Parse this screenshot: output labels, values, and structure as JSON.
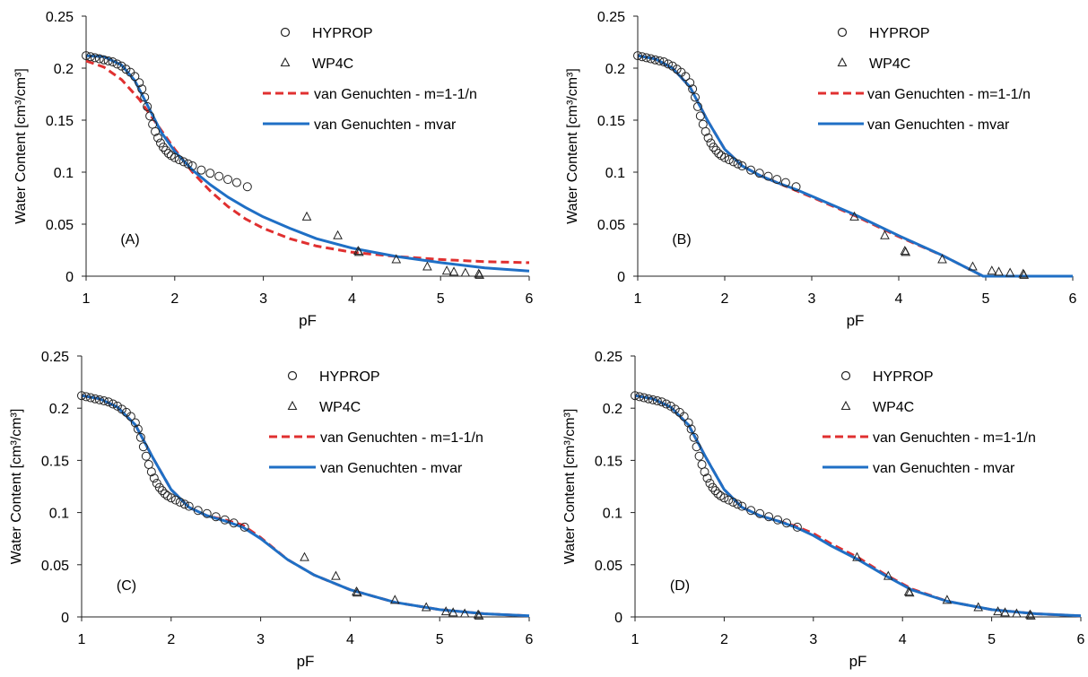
{
  "figure": {
    "x_axis": {
      "label": "pF",
      "lim": [
        1,
        6
      ],
      "ticks": [
        1,
        2,
        3,
        4,
        5,
        6
      ]
    },
    "y_axis": {
      "label": "Water Content [cm³/cm³]",
      "lim": [
        0,
        0.25
      ],
      "ticks": [
        0,
        0.05,
        0.1,
        0.15,
        0.2,
        0.25
      ],
      "tick_labels": [
        "0",
        "0.05",
        "0.1",
        "0.15",
        "0.2",
        "0.25"
      ]
    },
    "legend": {
      "placement": "top-right",
      "entries": [
        {
          "label": "HYPROP",
          "marker": "circle",
          "color": "#222222"
        },
        {
          "label": "WP4C",
          "marker": "triangle",
          "color": "#222222"
        },
        {
          "label": "van Genuchten - m=1-1/n",
          "line": "dashed",
          "color": "#e03030"
        },
        {
          "label": "van Genuchten - mvar",
          "line": "solid",
          "color": "#1f6fc5"
        }
      ]
    }
  },
  "chart_data": [
    {
      "type": "scatter",
      "panel_label": "(A)",
      "xlabel": "pF",
      "ylabel": "Water Content [cm³/cm³]",
      "xlim": [
        1,
        6
      ],
      "ylim": [
        0,
        0.25
      ],
      "grid": false,
      "series": [
        {
          "name": "HYPROP",
          "marker": "circle",
          "color": "#222222",
          "x": [
            1.0,
            1.05,
            1.1,
            1.15,
            1.2,
            1.25,
            1.3,
            1.35,
            1.4,
            1.45,
            1.5,
            1.55,
            1.6,
            1.63,
            1.66,
            1.69,
            1.72,
            1.75,
            1.78,
            1.81,
            1.84,
            1.87,
            1.9,
            1.93,
            1.96,
            2.0,
            2.05,
            2.1,
            2.15,
            2.2,
            2.3,
            2.4,
            2.5,
            2.6,
            2.7,
            2.82
          ],
          "y": [
            0.212,
            0.211,
            0.21,
            0.209,
            0.208,
            0.207,
            0.206,
            0.204,
            0.202,
            0.199,
            0.196,
            0.192,
            0.186,
            0.18,
            0.172,
            0.163,
            0.154,
            0.146,
            0.139,
            0.133,
            0.128,
            0.124,
            0.121,
            0.118,
            0.116,
            0.114,
            0.112,
            0.11,
            0.108,
            0.106,
            0.102,
            0.099,
            0.096,
            0.093,
            0.09,
            0.086
          ]
        },
        {
          "name": "WP4C",
          "marker": "triangle",
          "color": "#222222",
          "x": [
            3.49,
            3.84,
            4.07,
            4.08,
            4.5,
            4.85,
            5.07,
            5.15,
            5.28,
            5.43,
            5.44
          ],
          "y": [
            0.057,
            0.039,
            0.024,
            0.023,
            0.016,
            0.009,
            0.005,
            0.004,
            0.003,
            0.002,
            0.001
          ]
        },
        {
          "name": "van Genuchten - m=1-1/n",
          "line": "dashed",
          "color": "#e03030",
          "x": [
            1.0,
            1.2,
            1.4,
            1.6,
            1.8,
            2.0,
            2.2,
            2.4,
            2.6,
            2.8,
            3.0,
            3.3,
            3.6,
            4.0,
            4.5,
            5.0,
            5.5,
            6.0
          ],
          "y": [
            0.207,
            0.201,
            0.189,
            0.17,
            0.146,
            0.122,
            0.1,
            0.082,
            0.067,
            0.055,
            0.046,
            0.036,
            0.029,
            0.023,
            0.019,
            0.016,
            0.014,
            0.013
          ]
        },
        {
          "name": "van Genuchten - mvar",
          "line": "solid",
          "color": "#1f6fc5",
          "x": [
            1.0,
            1.2,
            1.4,
            1.55,
            1.7,
            1.85,
            2.0,
            2.2,
            2.4,
            2.6,
            2.8,
            3.0,
            3.3,
            3.6,
            4.0,
            4.5,
            5.0,
            5.5,
            6.0
          ],
          "y": [
            0.212,
            0.211,
            0.203,
            0.188,
            0.163,
            0.138,
            0.12,
            0.102,
            0.088,
            0.076,
            0.066,
            0.057,
            0.046,
            0.036,
            0.027,
            0.019,
            0.013,
            0.008,
            0.005
          ]
        }
      ]
    },
    {
      "type": "scatter",
      "panel_label": "(B)",
      "xlabel": "pF",
      "ylabel": "Water Content [cm³/cm³]",
      "xlim": [
        1,
        6
      ],
      "ylim": [
        0,
        0.25
      ],
      "grid": false,
      "series": [
        {
          "name": "HYPROP",
          "marker": "circle",
          "color": "#222222",
          "x": [
            1.0,
            1.05,
            1.1,
            1.15,
            1.2,
            1.25,
            1.3,
            1.35,
            1.4,
            1.45,
            1.5,
            1.55,
            1.6,
            1.63,
            1.66,
            1.69,
            1.72,
            1.75,
            1.78,
            1.81,
            1.84,
            1.87,
            1.9,
            1.93,
            1.96,
            2.0,
            2.05,
            2.1,
            2.15,
            2.2,
            2.3,
            2.4,
            2.5,
            2.6,
            2.7,
            2.82
          ],
          "y": [
            0.212,
            0.211,
            0.21,
            0.209,
            0.208,
            0.207,
            0.206,
            0.204,
            0.202,
            0.199,
            0.196,
            0.192,
            0.186,
            0.18,
            0.172,
            0.163,
            0.154,
            0.146,
            0.139,
            0.133,
            0.128,
            0.124,
            0.121,
            0.118,
            0.116,
            0.114,
            0.112,
            0.11,
            0.108,
            0.106,
            0.102,
            0.099,
            0.096,
            0.093,
            0.09,
            0.086
          ]
        },
        {
          "name": "WP4C",
          "marker": "triangle",
          "color": "#222222",
          "x": [
            3.49,
            3.84,
            4.07,
            4.08,
            4.5,
            4.85,
            5.07,
            5.15,
            5.28,
            5.43,
            5.44
          ],
          "y": [
            0.057,
            0.039,
            0.024,
            0.023,
            0.016,
            0.009,
            0.005,
            0.004,
            0.003,
            0.002,
            0.001
          ]
        },
        {
          "name": "van Genuchten - m=1-1/n",
          "line": "dashed",
          "color": "#e03030",
          "x": [
            1.0,
            1.2,
            1.4,
            1.6,
            1.8,
            2.0,
            2.2,
            2.4,
            2.6,
            2.8,
            3.0,
            3.5,
            4.0,
            4.5,
            4.97,
            5.2,
            6.0
          ],
          "y": [
            0.212,
            0.209,
            0.2,
            0.182,
            0.15,
            0.122,
            0.106,
            0.097,
            0.09,
            0.083,
            0.076,
            0.058,
            0.038,
            0.02,
            0.0,
            0.0,
            0.0
          ]
        },
        {
          "name": "van Genuchten - mvar",
          "line": "solid",
          "color": "#1f6fc5",
          "x": [
            1.0,
            1.2,
            1.4,
            1.6,
            1.8,
            2.0,
            2.2,
            2.4,
            2.6,
            2.8,
            3.0,
            3.5,
            4.0,
            4.5,
            4.97,
            5.2,
            6.0
          ],
          "y": [
            0.212,
            0.209,
            0.2,
            0.182,
            0.15,
            0.122,
            0.106,
            0.097,
            0.09,
            0.084,
            0.077,
            0.059,
            0.039,
            0.02,
            0.0,
            0.0,
            0.0
          ]
        }
      ]
    },
    {
      "type": "scatter",
      "panel_label": "(C)",
      "xlabel": "pF",
      "ylabel": "Water Content [cm³/cm³]",
      "xlim": [
        1,
        6
      ],
      "ylim": [
        0,
        0.25
      ],
      "grid": false,
      "series": [
        {
          "name": "HYPROP",
          "marker": "circle",
          "color": "#222222",
          "x": [
            1.0,
            1.05,
            1.1,
            1.15,
            1.2,
            1.25,
            1.3,
            1.35,
            1.4,
            1.45,
            1.5,
            1.55,
            1.6,
            1.63,
            1.66,
            1.69,
            1.72,
            1.75,
            1.78,
            1.81,
            1.84,
            1.87,
            1.9,
            1.93,
            1.96,
            2.0,
            2.05,
            2.1,
            2.15,
            2.2,
            2.3,
            2.4,
            2.5,
            2.6,
            2.7,
            2.82
          ],
          "y": [
            0.212,
            0.211,
            0.21,
            0.209,
            0.208,
            0.207,
            0.206,
            0.204,
            0.202,
            0.199,
            0.196,
            0.192,
            0.186,
            0.18,
            0.172,
            0.163,
            0.154,
            0.146,
            0.139,
            0.133,
            0.128,
            0.124,
            0.121,
            0.118,
            0.116,
            0.114,
            0.112,
            0.11,
            0.108,
            0.106,
            0.102,
            0.099,
            0.096,
            0.093,
            0.09,
            0.086
          ]
        },
        {
          "name": "WP4C",
          "marker": "triangle",
          "color": "#222222",
          "x": [
            3.49,
            3.84,
            4.07,
            4.08,
            4.5,
            4.85,
            5.07,
            5.15,
            5.28,
            5.43,
            5.44
          ],
          "y": [
            0.057,
            0.039,
            0.024,
            0.023,
            0.016,
            0.009,
            0.005,
            0.004,
            0.003,
            0.002,
            0.001
          ]
        },
        {
          "name": "van Genuchten - m=1-1/n",
          "line": "dashed",
          "color": "#e03030",
          "x": [
            1.0,
            1.2,
            1.4,
            1.6,
            1.8,
            2.0,
            2.2,
            2.4,
            2.6,
            2.8,
            3.0,
            3.3,
            3.6,
            4.0,
            4.5,
            5.0,
            5.5,
            6.0
          ],
          "y": [
            0.212,
            0.209,
            0.201,
            0.184,
            0.152,
            0.122,
            0.105,
            0.097,
            0.093,
            0.088,
            0.076,
            0.055,
            0.04,
            0.026,
            0.014,
            0.007,
            0.003,
            0.001
          ]
        },
        {
          "name": "van Genuchten - mvar",
          "line": "solid",
          "color": "#1f6fc5",
          "x": [
            1.0,
            1.2,
            1.4,
            1.6,
            1.8,
            2.0,
            2.2,
            2.4,
            2.6,
            2.8,
            3.0,
            3.3,
            3.6,
            4.0,
            4.5,
            5.0,
            5.5,
            6.0
          ],
          "y": [
            0.212,
            0.209,
            0.201,
            0.184,
            0.152,
            0.122,
            0.105,
            0.097,
            0.092,
            0.086,
            0.075,
            0.055,
            0.04,
            0.026,
            0.014,
            0.007,
            0.003,
            0.001
          ]
        }
      ]
    },
    {
      "type": "scatter",
      "panel_label": "(D)",
      "xlabel": "pF",
      "ylabel": "Water Content [cm³/cm³]",
      "xlim": [
        1,
        6
      ],
      "ylim": [
        0,
        0.25
      ],
      "grid": false,
      "series": [
        {
          "name": "HYPROP",
          "marker": "circle",
          "color": "#222222",
          "x": [
            1.0,
            1.05,
            1.1,
            1.15,
            1.2,
            1.25,
            1.3,
            1.35,
            1.4,
            1.45,
            1.5,
            1.55,
            1.6,
            1.63,
            1.66,
            1.69,
            1.72,
            1.75,
            1.78,
            1.81,
            1.84,
            1.87,
            1.9,
            1.93,
            1.96,
            2.0,
            2.05,
            2.1,
            2.15,
            2.2,
            2.3,
            2.4,
            2.5,
            2.6,
            2.7,
            2.82
          ],
          "y": [
            0.212,
            0.211,
            0.21,
            0.209,
            0.208,
            0.207,
            0.206,
            0.204,
            0.202,
            0.199,
            0.196,
            0.192,
            0.186,
            0.18,
            0.172,
            0.163,
            0.154,
            0.146,
            0.139,
            0.133,
            0.128,
            0.124,
            0.121,
            0.118,
            0.116,
            0.114,
            0.112,
            0.11,
            0.108,
            0.106,
            0.102,
            0.099,
            0.096,
            0.093,
            0.09,
            0.086
          ]
        },
        {
          "name": "WP4C",
          "marker": "triangle",
          "color": "#222222",
          "x": [
            3.49,
            3.84,
            4.07,
            4.08,
            4.5,
            4.85,
            5.07,
            5.15,
            5.28,
            5.43,
            5.44
          ],
          "y": [
            0.057,
            0.039,
            0.024,
            0.023,
            0.016,
            0.009,
            0.005,
            0.004,
            0.003,
            0.002,
            0.001
          ]
        },
        {
          "name": "van Genuchten - m=1-1/n",
          "line": "dashed",
          "color": "#e03030",
          "x": [
            1.0,
            1.2,
            1.4,
            1.6,
            1.8,
            2.0,
            2.2,
            2.4,
            2.6,
            2.8,
            3.0,
            3.2,
            3.5,
            3.8,
            4.1,
            4.5,
            5.0,
            5.5,
            6.0
          ],
          "y": [
            0.212,
            0.209,
            0.201,
            0.184,
            0.152,
            0.122,
            0.105,
            0.097,
            0.092,
            0.087,
            0.08,
            0.07,
            0.057,
            0.041,
            0.027,
            0.015,
            0.007,
            0.003,
            0.001
          ]
        },
        {
          "name": "van Genuchten - mvar",
          "line": "solid",
          "color": "#1f6fc5",
          "x": [
            1.0,
            1.2,
            1.4,
            1.6,
            1.8,
            2.0,
            2.2,
            2.4,
            2.6,
            2.8,
            3.0,
            3.2,
            3.5,
            3.8,
            4.1,
            4.5,
            5.0,
            5.5,
            6.0
          ],
          "y": [
            0.212,
            0.209,
            0.201,
            0.184,
            0.152,
            0.122,
            0.105,
            0.097,
            0.092,
            0.086,
            0.078,
            0.068,
            0.055,
            0.04,
            0.026,
            0.015,
            0.007,
            0.003,
            0.001
          ]
        }
      ]
    }
  ]
}
